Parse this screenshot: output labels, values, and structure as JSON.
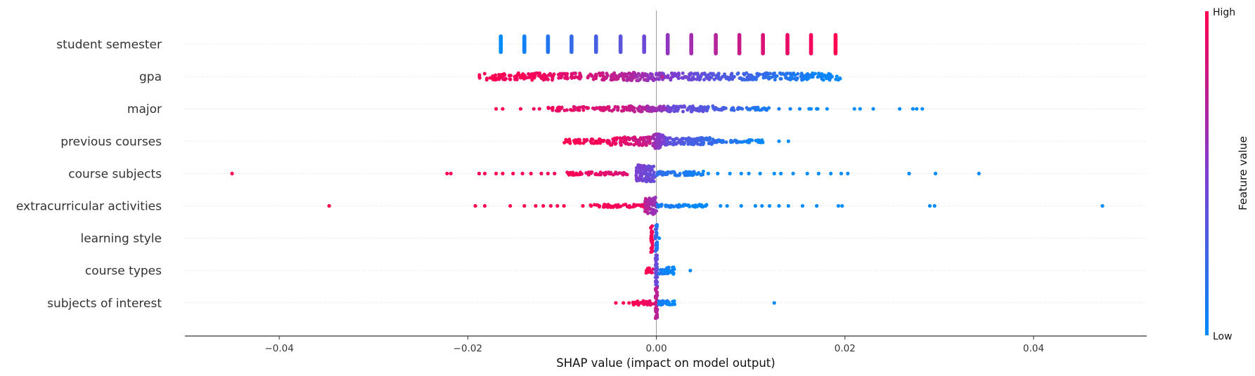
{
  "chart_data": {
    "type": "scatter",
    "title": "",
    "xlabel": "SHAP value (impact on model output)",
    "xlim": [
      -0.05,
      0.052
    ],
    "xticks": [
      -0.04,
      -0.02,
      0.0,
      0.02,
      0.04
    ],
    "xtick_labels": [
      "−0.04",
      "−0.02",
      "0.00",
      "0.02",
      "0.04"
    ],
    "colorbar": {
      "title": "Feature value",
      "high_label": "High",
      "low_label": "Low",
      "high_color": "#ff0051",
      "low_color": "#008bfb",
      "mid_color": "#7e3ed1"
    },
    "features": [
      {
        "name": "student semester",
        "columns": [
          {
            "x": -0.0165,
            "f": 0.0
          },
          {
            "x": -0.014,
            "f": 0.07
          },
          {
            "x": -0.0115,
            "f": 0.14
          },
          {
            "x": -0.009,
            "f": 0.21
          },
          {
            "x": -0.0064,
            "f": 0.28
          },
          {
            "x": -0.0038,
            "f": 0.36
          },
          {
            "x": -0.0013,
            "f": 0.43
          },
          {
            "x": 0.0012,
            "f": 0.57
          },
          {
            "x": 0.0037,
            "f": 0.64
          },
          {
            "x": 0.0063,
            "f": 0.71
          },
          {
            "x": 0.0088,
            "f": 0.78
          },
          {
            "x": 0.0113,
            "f": 0.86
          },
          {
            "x": 0.0139,
            "f": 0.92
          },
          {
            "x": 0.0164,
            "f": 0.96
          },
          {
            "x": 0.019,
            "f": 1.0
          }
        ],
        "segments": []
      },
      {
        "name": "gpa",
        "columns": [],
        "segments": [
          {
            "x1": -0.0188,
            "x2": -0.012,
            "f1": 1.0,
            "f2": 0.95,
            "n": 80,
            "w": 5
          },
          {
            "x1": -0.012,
            "x2": -0.004,
            "f1": 0.95,
            "f2": 0.75,
            "n": 90,
            "w": 5
          },
          {
            "x1": -0.004,
            "x2": 0.0,
            "f1": 0.75,
            "f2": 0.55,
            "n": 70,
            "w": 6
          },
          {
            "x1": 0.0,
            "x2": 0.006,
            "f1": 0.55,
            "f2": 0.35,
            "n": 80,
            "w": 5
          },
          {
            "x1": 0.006,
            "x2": 0.013,
            "f1": 0.35,
            "f2": 0.15,
            "n": 90,
            "w": 5
          },
          {
            "x1": 0.013,
            "x2": 0.0195,
            "f1": 0.15,
            "f2": 0.0,
            "n": 80,
            "w": 5
          }
        ],
        "points": [
          {
            "x": 0.0005,
            "f": 0.85
          },
          {
            "x": 0.0005,
            "f": 0.4
          },
          {
            "x": 0.0006,
            "f": 0.75
          }
        ]
      },
      {
        "name": "major",
        "columns": [],
        "segments": [
          {
            "x1": -0.0115,
            "x2": -0.003,
            "f1": 0.95,
            "f2": 0.8,
            "n": 80,
            "w": 3
          },
          {
            "x1": -0.003,
            "x2": 0.001,
            "f1": 0.8,
            "f2": 0.55,
            "n": 70,
            "w": 4
          },
          {
            "x1": 0.001,
            "x2": 0.006,
            "f1": 0.45,
            "f2": 0.3,
            "n": 70,
            "w": 4
          },
          {
            "x1": 0.006,
            "x2": 0.012,
            "f1": 0.3,
            "f2": 0.1,
            "n": 50,
            "w": 2
          }
        ],
        "points": [
          {
            "x": -0.017,
            "f": 1.0
          },
          {
            "x": -0.0163,
            "f": 1.0
          },
          {
            "x": -0.0144,
            "f": 0.98
          },
          {
            "x": -0.013,
            "f": 0.95
          },
          {
            "x": -0.0124,
            "f": 0.95
          },
          {
            "x": 0.0011,
            "f": 0.55
          },
          {
            "x": 0.001,
            "f": 0.6
          },
          {
            "x": 0.0012,
            "f": 0.5
          },
          {
            "x": 0.013,
            "f": 0.1
          },
          {
            "x": 0.0142,
            "f": 0.05
          },
          {
            "x": 0.0152,
            "f": 0.03
          },
          {
            "x": 0.0162,
            "f": 0.02
          },
          {
            "x": 0.017,
            "f": 0.02
          },
          {
            "x": 0.0181,
            "f": 0.0
          },
          {
            "x": 0.021,
            "f": 0.0
          },
          {
            "x": 0.0216,
            "f": 0.0
          },
          {
            "x": 0.023,
            "f": 0.0
          },
          {
            "x": 0.0258,
            "f": 0.0
          },
          {
            "x": 0.0272,
            "f": 0.0
          },
          {
            "x": 0.0276,
            "f": 0.0
          },
          {
            "x": 0.0282,
            "f": 0.0
          },
          {
            "x": 0.0164,
            "f": 0.02
          },
          {
            "x": 0.0171,
            "f": 0.02
          }
        ]
      },
      {
        "name": "previous courses",
        "columns": [],
        "segments": [
          {
            "x1": -0.0098,
            "x2": -0.005,
            "f1": 1.0,
            "f2": 0.95,
            "n": 60,
            "w": 3
          },
          {
            "x1": -0.005,
            "x2": -0.0005,
            "f1": 0.95,
            "f2": 0.75,
            "n": 90,
            "w": 6
          },
          {
            "x1": -0.0005,
            "x2": 0.001,
            "f1": 0.65,
            "f2": 0.45,
            "n": 70,
            "w": 10
          },
          {
            "x1": 0.001,
            "x2": 0.006,
            "f1": 0.4,
            "f2": 0.2,
            "n": 90,
            "w": 5
          },
          {
            "x1": 0.006,
            "x2": 0.0115,
            "f1": 0.2,
            "f2": 0.0,
            "n": 50,
            "w": 2
          }
        ],
        "points": [
          {
            "x": 0.013,
            "f": 0.0
          },
          {
            "x": 0.014,
            "f": 0.0
          }
        ]
      },
      {
        "name": "course subjects",
        "columns": [],
        "segments": [
          {
            "x1": -0.01,
            "x2": -0.003,
            "f1": 0.98,
            "f2": 0.85,
            "n": 60,
            "w": 2
          },
          {
            "x1": -0.0022,
            "x2": -0.0002,
            "f1": 0.5,
            "f2": 0.4,
            "n": 90,
            "w": 12
          },
          {
            "x1": 0.0,
            "x2": 0.005,
            "f1": 0.2,
            "f2": 0.05,
            "n": 60,
            "w": 3
          }
        ],
        "points": [
          {
            "x": -0.045,
            "f": 1.0
          },
          {
            "x": -0.0222,
            "f": 1.0
          },
          {
            "x": -0.0218,
            "f": 1.0
          },
          {
            "x": -0.0188,
            "f": 1.0
          },
          {
            "x": -0.0182,
            "f": 1.0
          },
          {
            "x": -0.017,
            "f": 1.0
          },
          {
            "x": -0.0163,
            "f": 1.0
          },
          {
            "x": -0.0152,
            "f": 1.0
          },
          {
            "x": -0.0142,
            "f": 1.0
          },
          {
            "x": -0.0133,
            "f": 1.0
          },
          {
            "x": -0.0122,
            "f": 0.98
          },
          {
            "x": -0.0115,
            "f": 0.98
          },
          {
            "x": -0.0108,
            "f": 0.98
          },
          {
            "x": 0.0055,
            "f": 0.0
          },
          {
            "x": 0.0065,
            "f": 0.0
          },
          {
            "x": 0.0078,
            "f": 0.0
          },
          {
            "x": 0.009,
            "f": 0.0
          },
          {
            "x": 0.0098,
            "f": 0.0
          },
          {
            "x": 0.011,
            "f": 0.0
          },
          {
            "x": 0.0125,
            "f": 0.0
          },
          {
            "x": 0.0132,
            "f": 0.0
          },
          {
            "x": 0.0145,
            "f": 0.0
          },
          {
            "x": 0.016,
            "f": 0.0
          },
          {
            "x": 0.0172,
            "f": 0.0
          },
          {
            "x": 0.0185,
            "f": 0.0
          },
          {
            "x": 0.0196,
            "f": 0.0
          },
          {
            "x": 0.0203,
            "f": 0.0
          },
          {
            "x": 0.0268,
            "f": 0.0
          },
          {
            "x": 0.0296,
            "f": 0.0
          },
          {
            "x": 0.0342,
            "f": 0.0
          }
        ]
      },
      {
        "name": "extracurricular activities",
        "columns": [],
        "segments": [
          {
            "x1": -0.007,
            "x2": -0.001,
            "f1": 1.0,
            "f2": 0.95,
            "n": 50,
            "w": 2
          },
          {
            "x1": -0.0012,
            "x2": 0.0,
            "f1": 0.75,
            "f2": 0.55,
            "n": 60,
            "w": 12
          },
          {
            "x1": 0.0,
            "x2": 0.0055,
            "f1": 0.1,
            "f2": 0.0,
            "n": 60,
            "w": 2
          }
        ],
        "points": [
          {
            "x": -0.0347,
            "f": 1.0
          },
          {
            "x": -0.0192,
            "f": 1.0
          },
          {
            "x": -0.0182,
            "f": 1.0
          },
          {
            "x": -0.0155,
            "f": 1.0
          },
          {
            "x": -0.014,
            "f": 1.0
          },
          {
            "x": -0.0128,
            "f": 1.0
          },
          {
            "x": -0.012,
            "f": 1.0
          },
          {
            "x": -0.0112,
            "f": 1.0
          },
          {
            "x": -0.0105,
            "f": 1.0
          },
          {
            "x": -0.0098,
            "f": 1.0
          },
          {
            "x": -0.0078,
            "f": 1.0
          },
          {
            "x": 0.0068,
            "f": 0.0
          },
          {
            "x": 0.0075,
            "f": 0.0
          },
          {
            "x": 0.009,
            "f": 0.0
          },
          {
            "x": 0.0105,
            "f": 0.0
          },
          {
            "x": 0.0112,
            "f": 0.0
          },
          {
            "x": 0.012,
            "f": 0.0
          },
          {
            "x": 0.013,
            "f": 0.0
          },
          {
            "x": 0.014,
            "f": 0.0
          },
          {
            "x": 0.0155,
            "f": 0.0
          },
          {
            "x": 0.017,
            "f": 0.0
          },
          {
            "x": 0.0193,
            "f": 0.0
          },
          {
            "x": 0.0197,
            "f": 0.0
          },
          {
            "x": 0.029,
            "f": 0.0
          },
          {
            "x": 0.0295,
            "f": 0.0
          },
          {
            "x": 0.0473,
            "f": 0.0
          }
        ]
      },
      {
        "name": "learning style",
        "columns": [],
        "segments": [
          {
            "x1": -0.0006,
            "x2": -0.0004,
            "f1": 1.0,
            "f2": 0.95,
            "n": 30,
            "w": 20
          },
          {
            "x1": -0.0001,
            "x2": 0.0001,
            "f1": 0.25,
            "f2": 0.1,
            "n": 30,
            "w": 20
          }
        ],
        "points": [
          {
            "x": 0.0003,
            "f": 0.0
          }
        ]
      },
      {
        "name": "course types",
        "columns": [],
        "segments": [
          {
            "x1": -0.0011,
            "x2": -0.0003,
            "f1": 1.0,
            "f2": 0.9,
            "n": 15,
            "w": 4
          },
          {
            "x1": -0.0001,
            "x2": 0.0001,
            "f1": 0.45,
            "f2": 0.35,
            "n": 40,
            "w": 22
          },
          {
            "x1": 0.0002,
            "x2": 0.002,
            "f1": 0.1,
            "f2": 0.0,
            "n": 30,
            "w": 5
          }
        ],
        "points": [
          {
            "x": 0.0036,
            "f": 0.0
          }
        ]
      },
      {
        "name": "subjects of interest",
        "columns": [],
        "segments": [
          {
            "x1": -0.0025,
            "x2": -0.0002,
            "f1": 1.0,
            "f2": 0.9,
            "n": 30,
            "w": 3
          },
          {
            "x1": -0.0001,
            "x2": 0.0001,
            "f1": 0.8,
            "f2": 0.7,
            "n": 40,
            "w": 22
          },
          {
            "x1": 0.0002,
            "x2": 0.002,
            "f1": 0.1,
            "f2": 0.0,
            "n": 25,
            "w": 3
          }
        ],
        "points": [
          {
            "x": -0.0043,
            "f": 1.0
          },
          {
            "x": -0.0035,
            "f": 1.0
          },
          {
            "x": -0.0029,
            "f": 1.0
          },
          {
            "x": 0.0125,
            "f": 0.0
          }
        ]
      }
    ]
  }
}
